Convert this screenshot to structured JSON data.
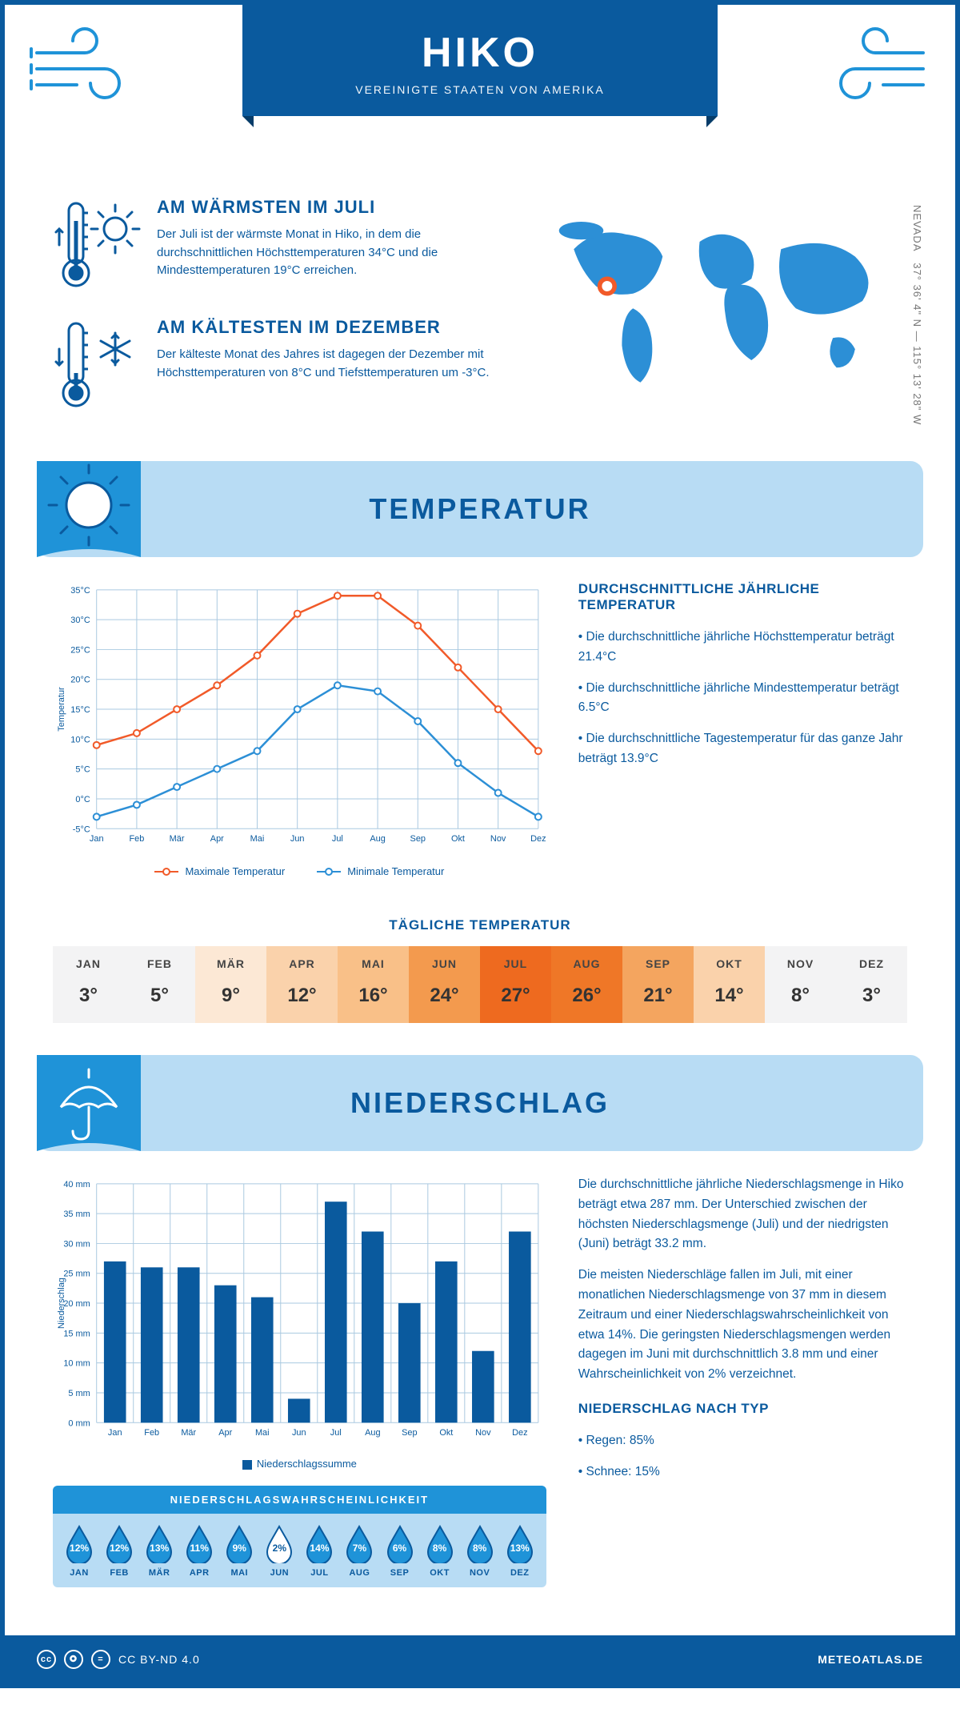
{
  "header": {
    "title": "HIKO",
    "subtitle": "VEREINIGTE STAATEN VON AMERIKA",
    "coords": "37° 36' 4\" N — 115° 13' 28\" W",
    "region": "NEVADA"
  },
  "colors": {
    "primary": "#0a5a9e",
    "light_blue": "#b8dcf4",
    "mid_blue": "#1f93d8",
    "orange": "#f15a29",
    "line_blue": "#2c8fd6",
    "grid": "#aac9e0"
  },
  "facts": {
    "warm": {
      "title": "AM WÄRMSTEN IM JULI",
      "text": "Der Juli ist der wärmste Monat in Hiko, in dem die durchschnittlichen Höchsttemperaturen 34°C und die Mindesttemperaturen 19°C erreichen."
    },
    "cold": {
      "title": "AM KÄLTESTEN IM DEZEMBER",
      "text": "Der kälteste Monat des Jahres ist dagegen der Dezember mit Höchsttemperaturen von 8°C und Tiefsttemperaturen um -3°C."
    }
  },
  "temperature": {
    "section_title": "TEMPERATUR",
    "info_title": "DURCHSCHNITTLICHE JÄHRLICHE TEMPERATUR",
    "bullets": [
      "• Die durchschnittliche jährliche Höchsttemperatur beträgt 21.4°C",
      "• Die durchschnittliche jährliche Mindesttemperatur beträgt 6.5°C",
      "• Die durchschnittliche Tagestemperatur für das ganze Jahr beträgt 13.9°C"
    ],
    "y_label": "Temperatur",
    "legend_max": "Maximale Temperatur",
    "legend_min": "Minimale Temperatur",
    "months": [
      "Jan",
      "Feb",
      "Mär",
      "Apr",
      "Mai",
      "Jun",
      "Jul",
      "Aug",
      "Sep",
      "Okt",
      "Nov",
      "Dez"
    ],
    "max_series": [
      9,
      11,
      15,
      19,
      24,
      31,
      34,
      34,
      29,
      22,
      15,
      8
    ],
    "min_series": [
      -3,
      -1,
      2,
      5,
      8,
      15,
      19,
      18,
      13,
      6,
      1,
      -3
    ],
    "ylim": [
      -5,
      35
    ],
    "ytick_step": 5,
    "daily_title": "TÄGLICHE TEMPERATUR",
    "daily_months": [
      "JAN",
      "FEB",
      "MÄR",
      "APR",
      "MAI",
      "JUN",
      "JUL",
      "AUG",
      "SEP",
      "OKT",
      "NOV",
      "DEZ"
    ],
    "daily_values": [
      "3°",
      "5°",
      "9°",
      "12°",
      "16°",
      "24°",
      "27°",
      "26°",
      "21°",
      "14°",
      "8°",
      "3°"
    ],
    "daily_colors": [
      "#f3f3f4",
      "#f3f3f4",
      "#fce8d5",
      "#fad2ab",
      "#f9c088",
      "#f39a4e",
      "#ee6a1f",
      "#ef7727",
      "#f4a55f",
      "#fad2ab",
      "#f3f3f4",
      "#f3f3f4"
    ]
  },
  "precip": {
    "section_title": "NIEDERSCHLAG",
    "y_label": "Niederschlag",
    "legend": "Niederschlagssumme",
    "months": [
      "Jan",
      "Feb",
      "Mär",
      "Apr",
      "Mai",
      "Jun",
      "Jul",
      "Aug",
      "Sep",
      "Okt",
      "Nov",
      "Dez"
    ],
    "values": [
      27,
      26,
      26,
      23,
      21,
      4,
      37,
      32,
      20,
      27,
      12,
      32
    ],
    "ylim": [
      0,
      40
    ],
    "ytick_step": 5,
    "text1": "Die durchschnittliche jährliche Niederschlagsmenge in Hiko beträgt etwa 287 mm. Der Unterschied zwischen der höchsten Niederschlagsmenge (Juli) und der niedrigsten (Juni) beträgt 33.2 mm.",
    "text2": "Die meisten Niederschläge fallen im Juli, mit einer monatlichen Niederschlagsmenge von 37 mm in diesem Zeitraum und einer Niederschlagswahrscheinlichkeit von etwa 14%. Die geringsten Niederschlagsmengen werden dagegen im Juni mit durchschnittlich 3.8 mm und einer Wahrscheinlichkeit von 2% verzeichnet.",
    "type_title": "NIEDERSCHLAG NACH TYP",
    "type_rain": "• Regen: 85%",
    "type_snow": "• Schnee: 15%",
    "prob_title": "NIEDERSCHLAGSWAHRSCHEINLICHKEIT",
    "prob_months": [
      "JAN",
      "FEB",
      "MÄR",
      "APR",
      "MAI",
      "JUN",
      "JUL",
      "AUG",
      "SEP",
      "OKT",
      "NOV",
      "DEZ"
    ],
    "prob_values": [
      "12%",
      "12%",
      "13%",
      "11%",
      "9%",
      "2%",
      "14%",
      "7%",
      "6%",
      "8%",
      "8%",
      "13%"
    ]
  },
  "footer": {
    "license": "CC BY-ND 4.0",
    "site": "METEOATLAS.DE"
  }
}
